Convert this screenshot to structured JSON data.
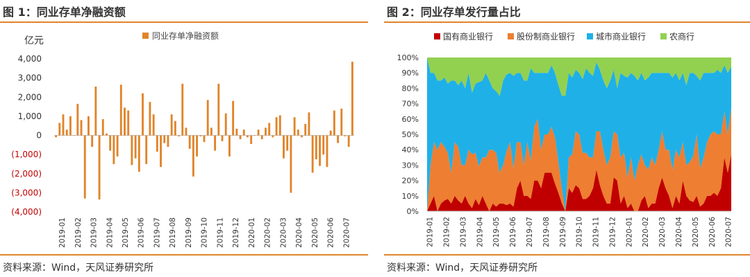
{
  "colors": {
    "bar": "#e0842a",
    "negative_tick": "#c00000",
    "accent": "#e0842a",
    "state": "#c00000",
    "jointstock": "#ee7e31",
    "city": "#1fb0e8",
    "rural": "#92d050"
  },
  "figure1": {
    "title": "图 1：同业存单净融资额",
    "source": "资料来源：Wind，天风证券研究所",
    "chart_data": {
      "type": "bar",
      "ylabel": "亿元",
      "ylim": [
        -4000,
        4000
      ],
      "yticks": [
        4000,
        3000,
        2000,
        1000,
        0,
        -1000,
        -2000,
        -3000,
        -4000
      ],
      "ytick_labels": [
        "4,000",
        "3,000",
        "2,000",
        "1,000",
        "0",
        "(1,000)",
        "(2,000)",
        "(3,000)",
        "(4,000)"
      ],
      "xtick_labels": [
        "2019-01",
        "2019-02",
        "2019-03",
        "2019-04",
        "2019-05",
        "2019-06",
        "2019-07",
        "2019-08",
        "2019-09",
        "2019-10",
        "2019-11",
        "2019-12",
        "2020-01",
        "2020-02",
        "2020-03",
        "2020-04",
        "2020-05",
        "2020-06",
        "2020-07"
      ],
      "series": [
        {
          "name": "同业存单净融资额",
          "values": [
            -100,
            650,
            1100,
            300,
            1000,
            0,
            1650,
            800,
            -3300,
            1000,
            -600,
            2550,
            -3350,
            850,
            100,
            -800,
            -1500,
            -1100,
            2650,
            1450,
            1300,
            -1550,
            -1200,
            -1900,
            2200,
            -1500,
            1750,
            1100,
            -850,
            -1650,
            -400,
            -600,
            1100,
            750,
            -50,
            2700,
            400,
            -700,
            -2150,
            -1100,
            -50,
            -350,
            1850,
            400,
            -800,
            2700,
            -300,
            1150,
            -1100,
            1800,
            350,
            -200,
            300,
            -100,
            -450,
            0,
            300,
            -200,
            400,
            650,
            -100,
            950,
            1050,
            -1200,
            -800,
            -3000,
            950,
            300,
            -100,
            600,
            1200,
            -1950,
            -1250,
            -1600,
            -1000,
            -1650,
            250,
            1300,
            -400,
            1400,
            -50,
            -600,
            3850
          ]
        }
      ]
    }
  },
  "figure2": {
    "title": "图 2：同业存单发行量占比",
    "source": "资料来源：Wind，天风证券研究所",
    "chart_data": {
      "type": "area",
      "stacked": true,
      "legend_position": "top",
      "ylim": [
        0,
        100
      ],
      "ytick_labels": [
        "100%",
        "90%",
        "80%",
        "70%",
        "60%",
        "50%",
        "40%",
        "30%",
        "20%",
        "10%",
        "0%"
      ],
      "xtick_labels": [
        "2019-01",
        "2019-02",
        "2019-03",
        "2019-04",
        "2019-05",
        "2019-06",
        "2019-07",
        "2019-08",
        "2019-09",
        "2019-10",
        "2019-11",
        "2019-12",
        "2020-01",
        "2020-02",
        "2020-03",
        "2020-04",
        "2020-05",
        "2020-06",
        "2020-07"
      ],
      "series": [
        {
          "name": "国有商业银行",
          "values": [
            0,
            5,
            10,
            0,
            5,
            7,
            8,
            5,
            10,
            7,
            5,
            10,
            5,
            2,
            8,
            4,
            10,
            5,
            0,
            5,
            3,
            5,
            5,
            4,
            5,
            3,
            15,
            20,
            10,
            10,
            8,
            20,
            20,
            15,
            25,
            25,
            25,
            18,
            12,
            5,
            0,
            15,
            12,
            17,
            15,
            8,
            8,
            10,
            15,
            27,
            17,
            10,
            5,
            5,
            22,
            20,
            5,
            10,
            2,
            5,
            0,
            0,
            7,
            10,
            2,
            5,
            5,
            15,
            22,
            15,
            10,
            2,
            10,
            5,
            20,
            10,
            7,
            6,
            10,
            3,
            5,
            10,
            10,
            12,
            10,
            15,
            35,
            25,
            37
          ]
        },
        {
          "name": "股份制商业银行",
          "values": [
            0,
            25,
            35,
            40,
            40,
            35,
            30,
            20,
            35,
            35,
            25,
            20,
            35,
            35,
            30,
            25,
            25,
            30,
            40,
            35,
            35,
            20,
            25,
            35,
            40,
            25,
            30,
            25,
            20,
            35,
            25,
            35,
            40,
            25,
            25,
            25,
            30,
            30,
            20,
            10,
            0,
            20,
            25,
            35,
            35,
            30,
            30,
            25,
            20,
            25,
            35,
            30,
            25,
            30,
            30,
            30,
            30,
            28,
            20,
            30,
            20,
            30,
            30,
            20,
            25,
            30,
            25,
            25,
            30,
            25,
            30,
            25,
            30,
            30,
            25,
            20,
            25,
            30,
            40,
            25,
            30,
            35,
            40,
            40,
            40,
            35,
            30,
            25,
            30
          ]
        },
        {
          "name": "城市商业银行",
          "values": [
            100,
            60,
            45,
            45,
            40,
            45,
            45,
            60,
            40,
            40,
            55,
            50,
            50,
            40,
            45,
            55,
            50,
            55,
            45,
            40,
            40,
            50,
            55,
            50,
            45,
            60,
            45,
            45,
            55,
            40,
            60,
            35,
            30,
            50,
            40,
            40,
            40,
            42,
            50,
            60,
            75,
            55,
            50,
            40,
            40,
            48,
            55,
            55,
            53,
            45,
            40,
            45,
            50,
            50,
            40,
            30,
            55,
            50,
            65,
            55,
            68,
            55,
            53,
            55,
            60,
            55,
            60,
            50,
            38,
            50,
            50,
            60,
            50,
            50,
            45,
            52,
            58,
            54,
            38,
            57,
            55,
            45,
            40,
            38,
            42,
            40,
            30,
            40,
            27
          ]
        },
        {
          "name": "农商行",
          "values": [
            0,
            10,
            10,
            15,
            15,
            13,
            17,
            15,
            15,
            18,
            15,
            20,
            10,
            23,
            17,
            16,
            15,
            10,
            15,
            20,
            22,
            25,
            15,
            11,
            10,
            12,
            10,
            10,
            15,
            15,
            7,
            10,
            10,
            10,
            10,
            10,
            5,
            10,
            18,
            25,
            25,
            10,
            13,
            8,
            10,
            14,
            7,
            10,
            12,
            3,
            8,
            15,
            20,
            15,
            8,
            20,
            10,
            12,
            13,
            10,
            12,
            15,
            10,
            15,
            13,
            10,
            10,
            10,
            10,
            10,
            10,
            13,
            10,
            15,
            10,
            18,
            10,
            10,
            12,
            15,
            10,
            10,
            10,
            10,
            8,
            10,
            5,
            10,
            6
          ]
        }
      ]
    }
  }
}
